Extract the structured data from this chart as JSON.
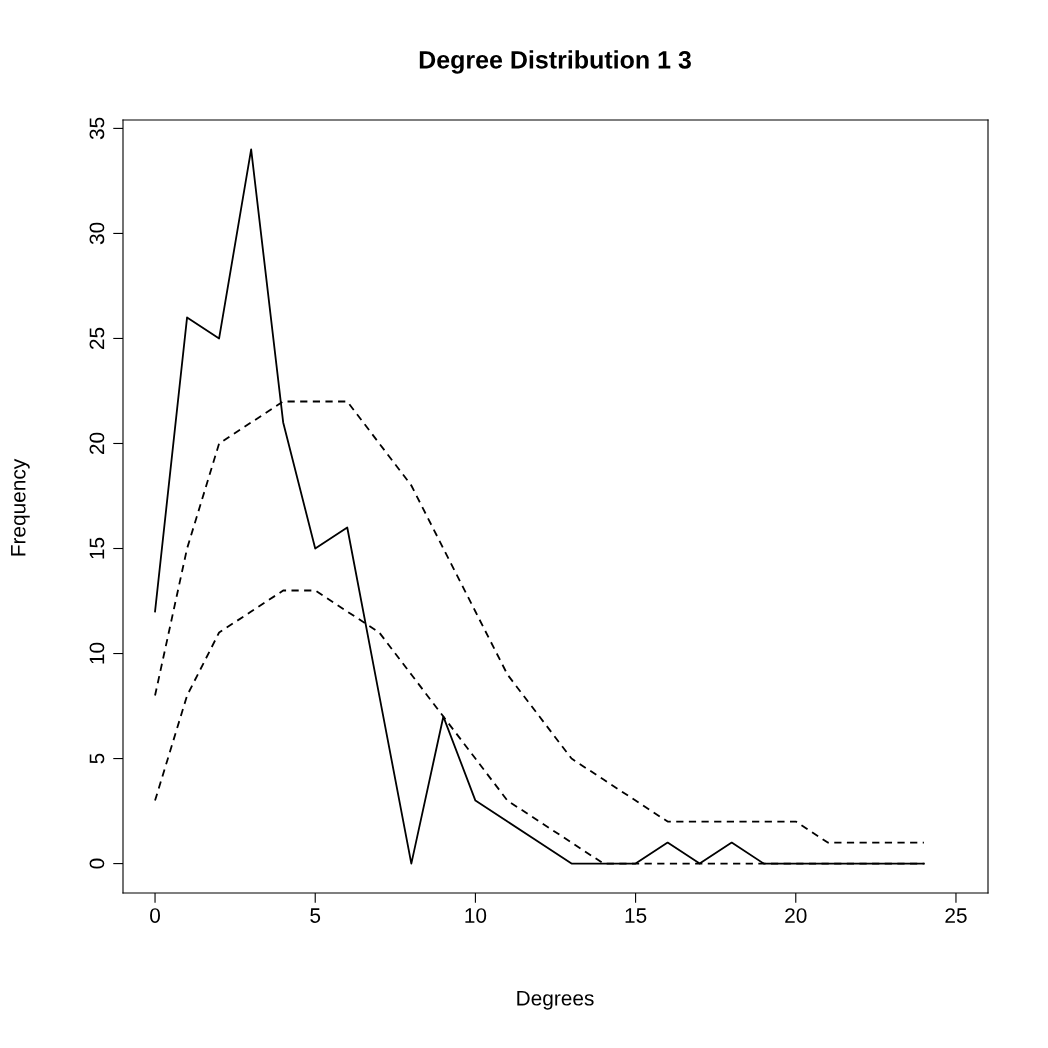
{
  "chart_data": {
    "type": "line",
    "title": "Degree Distribution 1 3",
    "xlabel": "Degrees",
    "ylabel": "Frequency",
    "x": [
      0,
      1,
      2,
      3,
      4,
      5,
      6,
      7,
      8,
      9,
      10,
      11,
      12,
      13,
      14,
      15,
      16,
      17,
      18,
      19,
      20,
      21,
      22,
      23,
      24
    ],
    "series": [
      {
        "color": "#000000",
        "line_style": "solid",
        "values": [
          12,
          26,
          25,
          34,
          21,
          15,
          16,
          8,
          0,
          7,
          3,
          2,
          1,
          0,
          0,
          0,
          1,
          0,
          1,
          0,
          0,
          0,
          0,
          0,
          0
        ]
      },
      {
        "color": "#000000",
        "line_style": "dashed",
        "values": [
          8,
          15,
          20,
          21,
          22,
          22,
          22,
          20,
          18,
          15,
          12,
          9,
          7,
          5,
          4,
          3,
          2,
          2,
          2,
          2,
          2,
          1,
          1,
          1,
          1
        ]
      },
      {
        "color": "#000000",
        "line_style": "dashed",
        "values": [
          3,
          8,
          11,
          12,
          13,
          13,
          12,
          11,
          9,
          7,
          5,
          3,
          2,
          1,
          0,
          0,
          0,
          0,
          0,
          0,
          0,
          0,
          0,
          0,
          0
        ]
      }
    ],
    "xlim": [
      -1,
      26
    ],
    "ylim": [
      -1.4,
      35.4
    ],
    "xticks": [
      0,
      5,
      10,
      15,
      20,
      25
    ],
    "yticks": [
      0,
      5,
      10,
      15,
      20,
      25,
      30,
      35
    ],
    "grid": false,
    "marker": "none"
  }
}
